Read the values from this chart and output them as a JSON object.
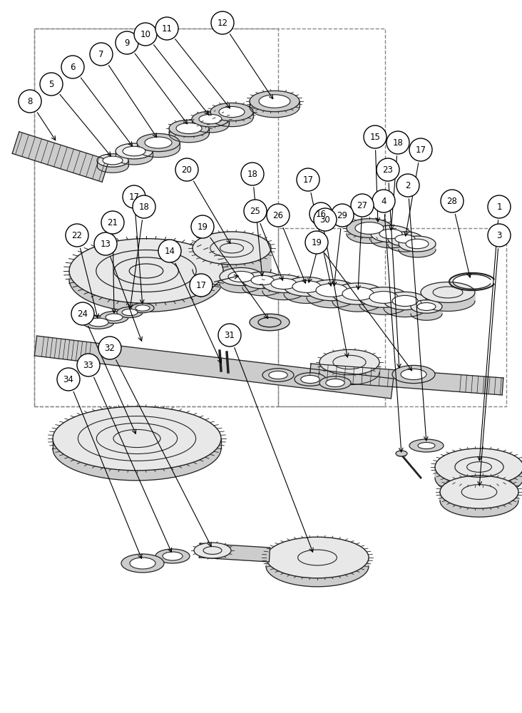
{
  "background_color": "#ffffff",
  "figure_width": 7.32,
  "figure_height": 10.0,
  "dpi": 100,
  "label_r": 0.018,
  "label_fontsize": 8.5
}
